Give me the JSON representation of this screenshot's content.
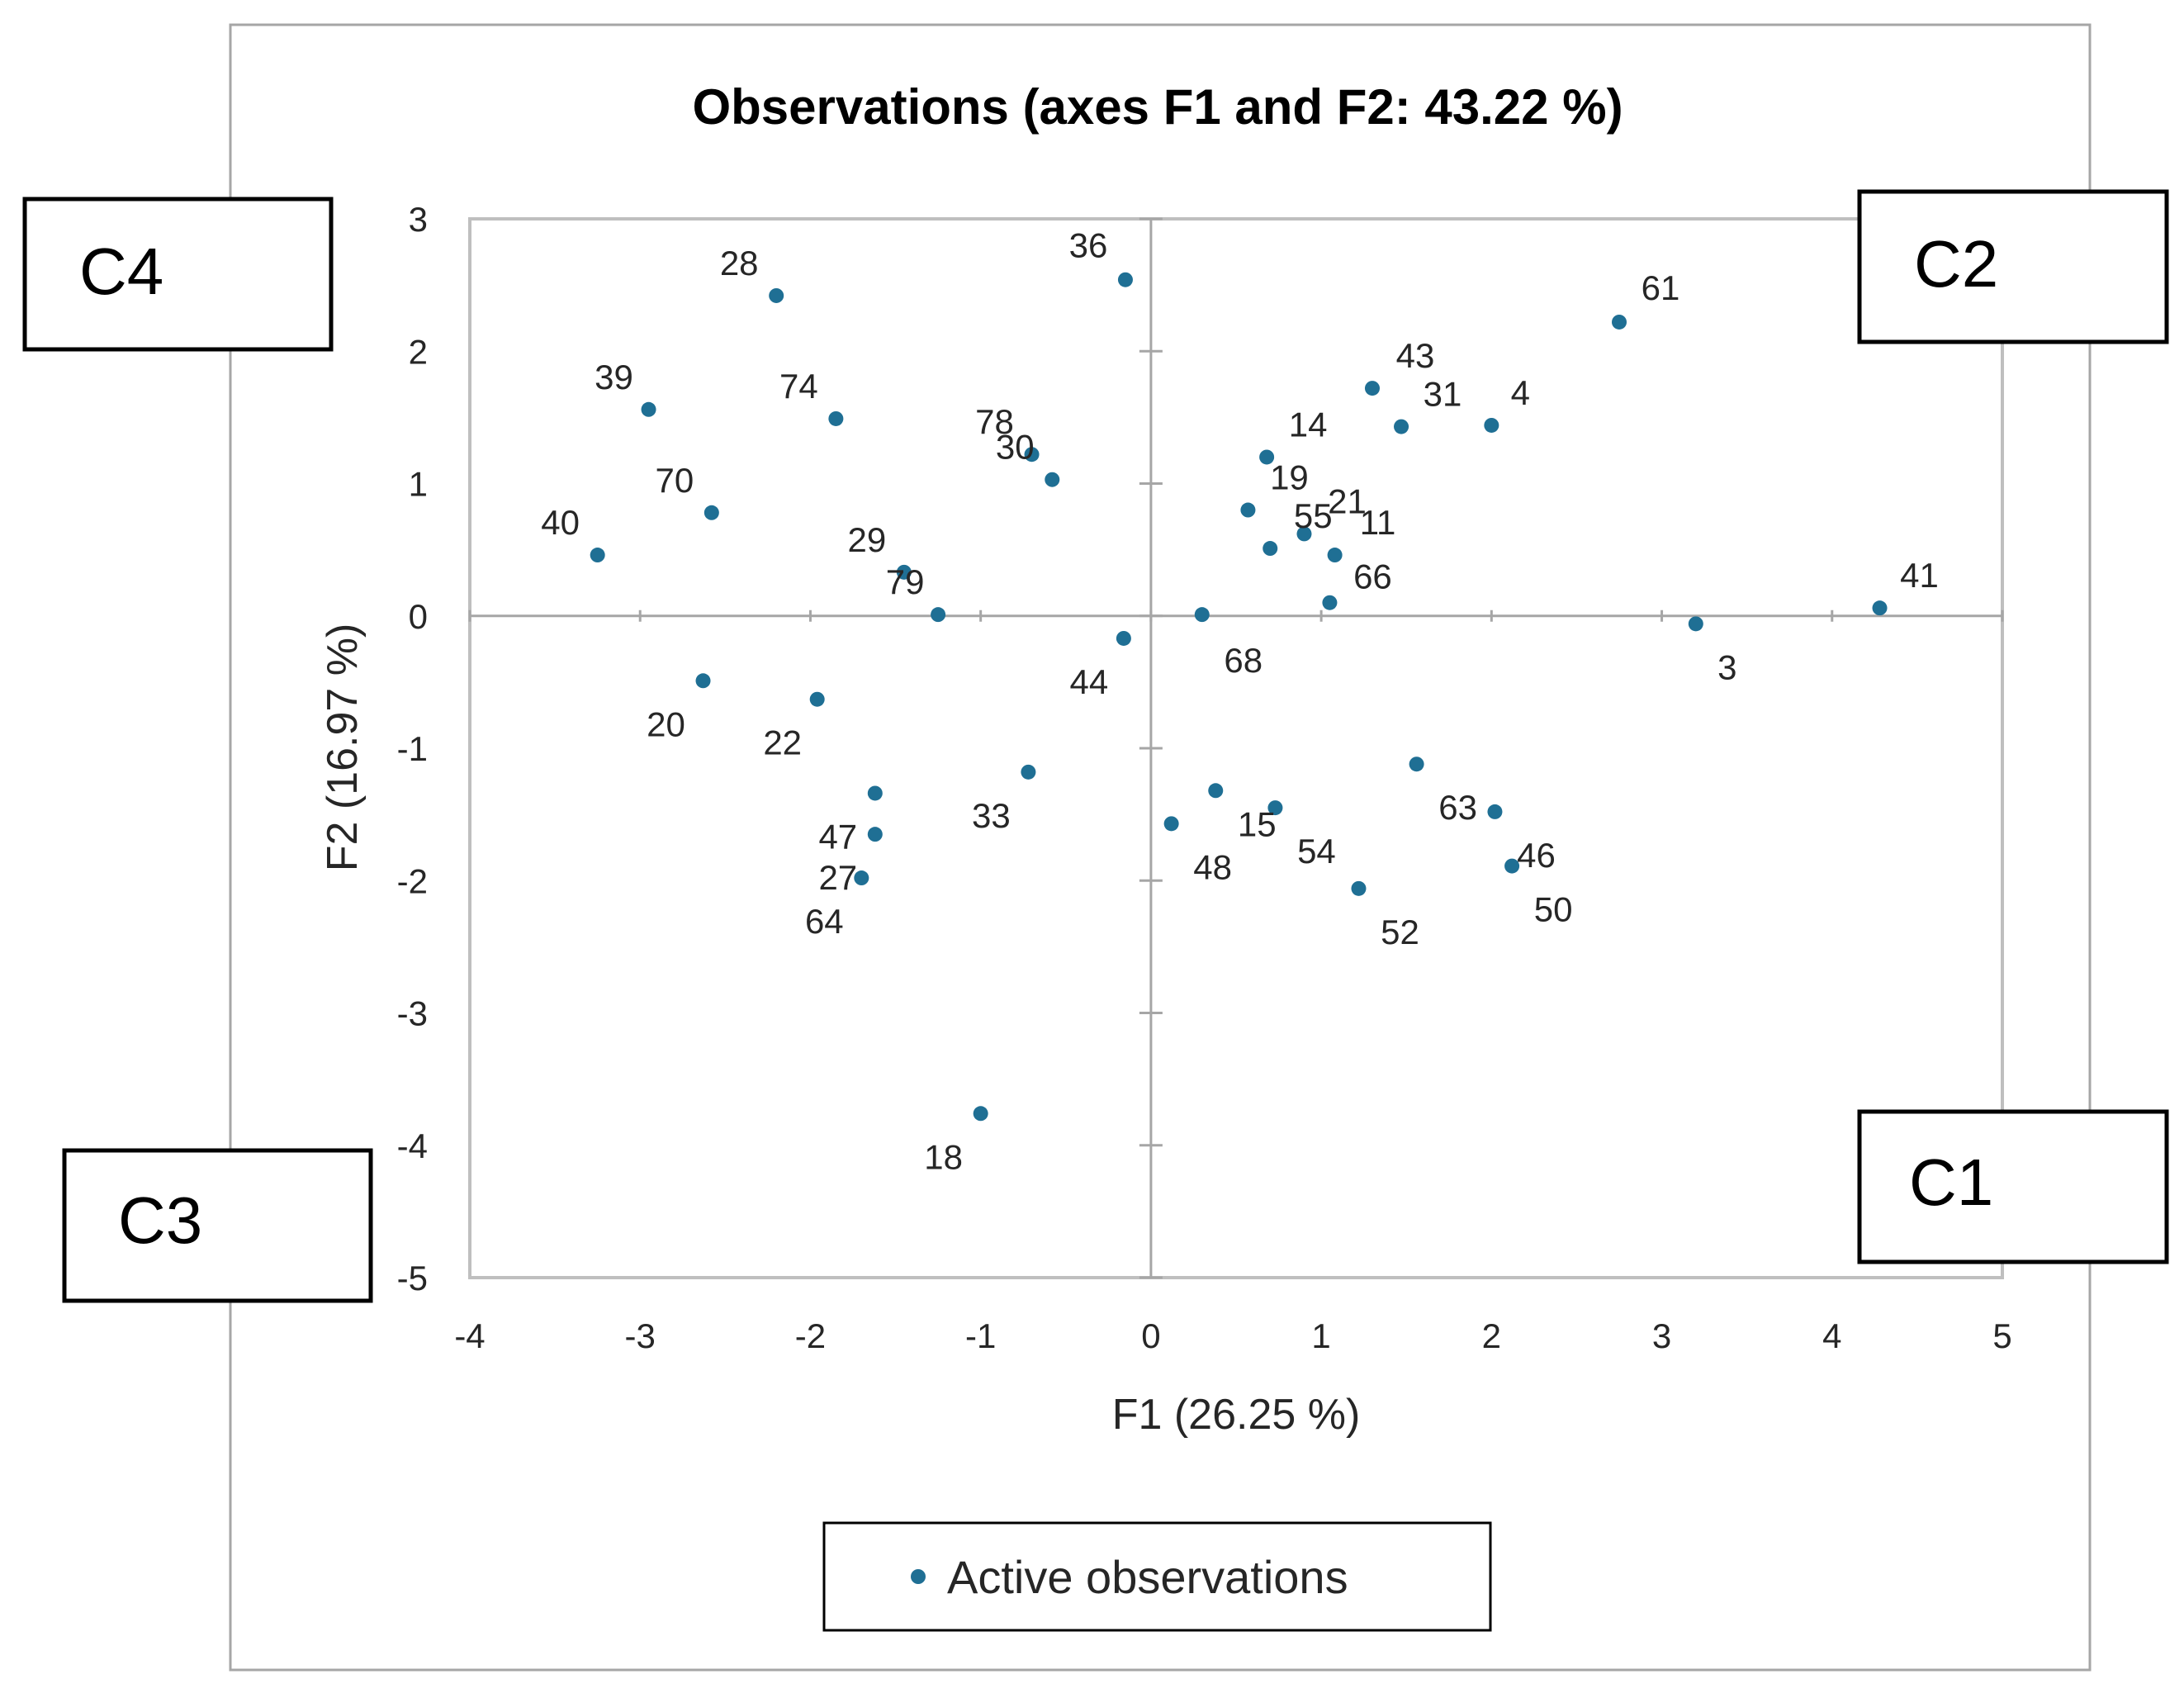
{
  "chart_data": {
    "type": "scatter",
    "title": "Observations (axes F1 and F2: 43.22 %)",
    "xlabel": "F1 (26.25 %)",
    "ylabel": "F2 (16.97 %)",
    "xlim": [
      -4,
      5
    ],
    "ylim": [
      -5,
      3
    ],
    "x_ticks": [
      "-4",
      "-3",
      "-2",
      "-1",
      "0",
      "1",
      "2",
      "3",
      "4",
      "5"
    ],
    "y_ticks": [
      "3",
      "2",
      "1",
      "0",
      "-1",
      "-2",
      "-3",
      "-4",
      "-5"
    ],
    "grid": false,
    "legend_position": "bottom",
    "series": [
      {
        "name": "Active observations",
        "color": "#1f6f94",
        "points": [
          {
            "label": "28",
            "x": -2.2,
            "y": 2.42
          },
          {
            "label": "36",
            "x": -0.15,
            "y": 2.54
          },
          {
            "label": "61",
            "x": 2.75,
            "y": 2.22
          },
          {
            "label": "39",
            "x": -2.95,
            "y": 1.56
          },
          {
            "label": "74",
            "x": -1.85,
            "y": 1.49
          },
          {
            "label": "43",
            "x": 1.3,
            "y": 1.72
          },
          {
            "label": "31",
            "x": 1.47,
            "y": 1.43
          },
          {
            "label": "4",
            "x": 2.0,
            "y": 1.44
          },
          {
            "label": "78",
            "x": -0.7,
            "y": 1.22
          },
          {
            "label": "30",
            "x": -0.58,
            "y": 1.03
          },
          {
            "label": "14",
            "x": 0.68,
            "y": 1.2
          },
          {
            "label": "19",
            "x": 0.57,
            "y": 0.8
          },
          {
            "label": "70",
            "x": -2.58,
            "y": 0.78
          },
          {
            "label": "21",
            "x": 0.9,
            "y": 0.62
          },
          {
            "label": "55",
            "x": 0.7,
            "y": 0.51
          },
          {
            "label": "11",
            "x": 1.08,
            "y": 0.46
          },
          {
            "label": "66",
            "x": 1.05,
            "y": 0.1
          },
          {
            "label": "40",
            "x": -3.25,
            "y": 0.46
          },
          {
            "label": "29",
            "x": -1.45,
            "y": 0.33
          },
          {
            "label": "79",
            "x": -1.25,
            "y": 0.01
          },
          {
            "label": "68",
            "x": 0.3,
            "y": 0.01
          },
          {
            "label": "41",
            "x": 4.28,
            "y": 0.06
          },
          {
            "label": "3",
            "x": 3.2,
            "y": -0.06
          },
          {
            "label": "44",
            "x": -0.16,
            "y": -0.17
          },
          {
            "label": "20",
            "x": -2.63,
            "y": -0.49
          },
          {
            "label": "22",
            "x": -1.96,
            "y": -0.63
          },
          {
            "label": "63",
            "x": 1.56,
            "y": -1.12
          },
          {
            "label": "33",
            "x": -0.72,
            "y": -1.18
          },
          {
            "label": "47",
            "x": -1.62,
            "y": -1.34
          },
          {
            "label": "15",
            "x": 0.38,
            "y": -1.32
          },
          {
            "label": "54",
            "x": 0.73,
            "y": -1.45
          },
          {
            "label": "46",
            "x": 2.02,
            "y": -1.48
          },
          {
            "label": "27",
            "x": -1.62,
            "y": -1.65
          },
          {
            "label": "48",
            "x": 0.12,
            "y": -1.57
          },
          {
            "label": "50",
            "x": 2.12,
            "y": -1.89
          },
          {
            "label": "64",
            "x": -1.7,
            "y": -1.98
          },
          {
            "label": "52",
            "x": 1.22,
            "y": -2.06
          },
          {
            "label": "18",
            "x": -1.0,
            "y": -3.76
          }
        ]
      }
    ],
    "cluster_boxes": [
      "C4",
      "C2",
      "C3",
      "C1"
    ]
  }
}
